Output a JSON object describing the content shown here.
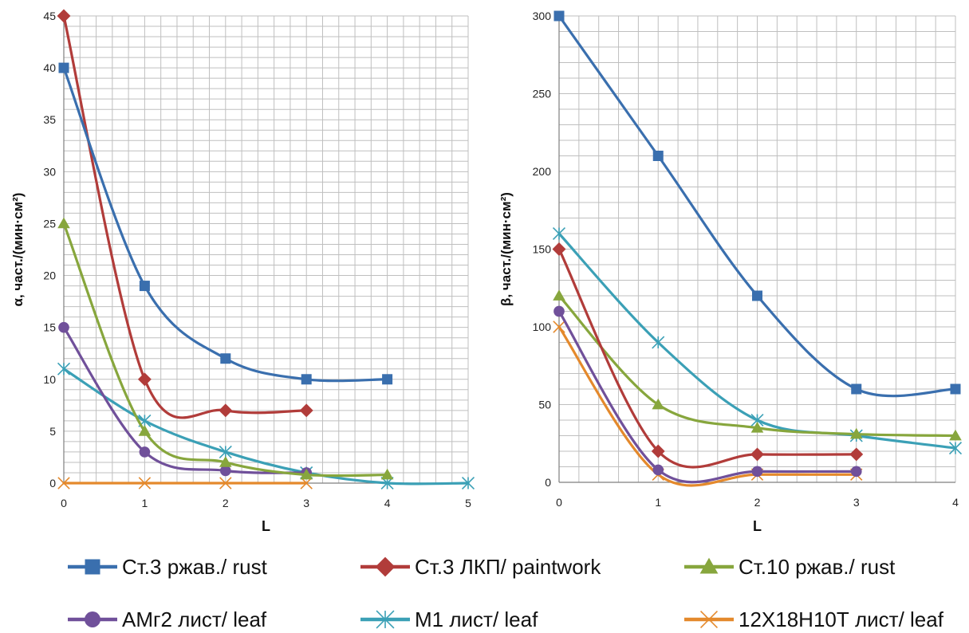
{
  "chart_data": [
    {
      "type": "line",
      "title": "",
      "xlabel": "L",
      "ylabel": "α, част./(мин·см²)",
      "xlim": [
        0,
        5
      ],
      "ylim": [
        0,
        45
      ],
      "xticks": [
        0,
        1,
        2,
        3,
        4,
        5
      ],
      "yticks": [
        0,
        5,
        10,
        15,
        20,
        25,
        30,
        35,
        40,
        45
      ],
      "grid": true,
      "series": [
        {
          "name": "Ст.3 ржав./ rust",
          "x": [
            0,
            1,
            2,
            3,
            4
          ],
          "values": [
            40,
            19,
            12,
            10,
            10
          ]
        },
        {
          "name": "Ст.3 ЛКП/ paintwork",
          "x": [
            0,
            1,
            2,
            3
          ],
          "values": [
            45,
            10,
            7,
            7
          ]
        },
        {
          "name": "Ст.10 ржав./ rust",
          "x": [
            0,
            1,
            2,
            3,
            4
          ],
          "values": [
            25,
            5,
            2,
            0.8,
            0.8
          ]
        },
        {
          "name": "АМг2 лист/ leaf",
          "x": [
            0,
            1,
            2,
            3
          ],
          "values": [
            15,
            3,
            1.2,
            1
          ]
        },
        {
          "name": "М1 лист/ leaf",
          "x": [
            0,
            1,
            2,
            3,
            4,
            5
          ],
          "values": [
            11,
            6,
            3,
            1,
            0,
            0
          ]
        },
        {
          "name": "12Х18Н10Т лист/ leaf",
          "x": [
            0,
            1,
            2,
            3
          ],
          "values": [
            0,
            0,
            0,
            0
          ]
        }
      ]
    },
    {
      "type": "line",
      "title": "",
      "xlabel": "L",
      "ylabel": "β, част./(мин·см²)",
      "xlim": [
        0,
        4
      ],
      "ylim": [
        0,
        300
      ],
      "xticks": [
        0,
        1,
        2,
        3,
        4
      ],
      "yticks": [
        0,
        50,
        100,
        150,
        200,
        250,
        300
      ],
      "grid": true,
      "series": [
        {
          "name": "Ст.3 ржав./ rust",
          "x": [
            0,
            1,
            2,
            3,
            4
          ],
          "values": [
            300,
            210,
            120,
            60,
            60
          ]
        },
        {
          "name": "Ст.3 ЛКП/ paintwork",
          "x": [
            0,
            1,
            2,
            3
          ],
          "values": [
            150,
            20,
            18,
            18
          ]
        },
        {
          "name": "Ст.10 ржав./ rust",
          "x": [
            0,
            1,
            2,
            3,
            4
          ],
          "values": [
            120,
            50,
            35,
            31,
            30
          ]
        },
        {
          "name": "АМг2 лист/ leaf",
          "x": [
            0,
            1,
            2,
            3
          ],
          "values": [
            110,
            8,
            7,
            7
          ]
        },
        {
          "name": "М1 лист/ leaf",
          "x": [
            0,
            1,
            2,
            3,
            4
          ],
          "values": [
            160,
            90,
            40,
            30,
            22
          ]
        },
        {
          "name": "12Х18Н10Т лист/ leaf",
          "x": [
            0,
            1,
            2,
            3
          ],
          "values": [
            100,
            5,
            5,
            5
          ]
        }
      ]
    }
  ],
  "legend": {
    "placement": "bottom",
    "items": [
      {
        "label": "Ст.3 ржав./ rust",
        "color": "#3A6FAE",
        "marker": "square"
      },
      {
        "label": "Ст.3 ЛКП/ paintwork",
        "color": "#B13C3A",
        "marker": "diamond"
      },
      {
        "label": "Ст.10 ржав./ rust",
        "color": "#87A63D",
        "marker": "triangle"
      },
      {
        "label": "АМг2 лист/ leaf",
        "color": "#70509A",
        "marker": "circle"
      },
      {
        "label": "М1 лист/ leaf",
        "color": "#3BA0B6",
        "marker": "asterisk"
      },
      {
        "label": "12Х18Н10Т лист/ leaf",
        "color": "#E4892C",
        "marker": "cross"
      }
    ]
  }
}
